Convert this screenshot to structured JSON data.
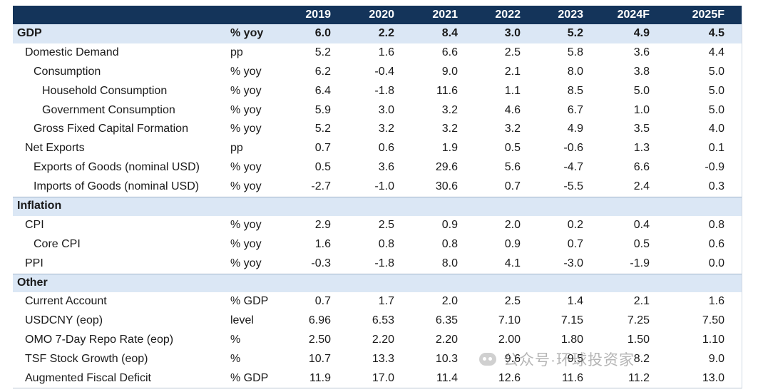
{
  "chart_data": {
    "type": "table",
    "columns": [
      "",
      "",
      "2019",
      "2020",
      "2021",
      "2022",
      "2023",
      "2024F",
      "2025F"
    ],
    "rows": [
      {
        "label": "GDP",
        "unit": "% yoy",
        "values": [
          "6.0",
          "2.2",
          "8.4",
          "3.0",
          "5.2",
          "4.9",
          "4.5"
        ],
        "kind": "section"
      },
      {
        "label": "Domestic Demand",
        "unit": "pp",
        "values": [
          "5.2",
          "1.6",
          "6.6",
          "2.5",
          "5.8",
          "3.6",
          "4.4"
        ],
        "indent": 1
      },
      {
        "label": "Consumption",
        "unit": "% yoy",
        "values": [
          "6.2",
          "-0.4",
          "9.0",
          "2.1",
          "8.0",
          "3.8",
          "5.0"
        ],
        "indent": 2
      },
      {
        "label": "Household Consumption",
        "unit": "% yoy",
        "values": [
          "6.4",
          "-1.8",
          "11.6",
          "1.1",
          "8.5",
          "5.0",
          "5.0"
        ],
        "indent": 3
      },
      {
        "label": "Government Consumption",
        "unit": "% yoy",
        "values": [
          "5.9",
          "3.0",
          "3.2",
          "4.6",
          "6.7",
          "1.0",
          "5.0"
        ],
        "indent": 3
      },
      {
        "label": "Gross Fixed Capital Formation",
        "unit": "% yoy",
        "values": [
          "5.2",
          "3.2",
          "3.2",
          "3.2",
          "4.9",
          "3.5",
          "4.0"
        ],
        "indent": 2
      },
      {
        "label": "Net Exports",
        "unit": "pp",
        "values": [
          "0.7",
          "0.6",
          "1.9",
          "0.5",
          "-0.6",
          "1.3",
          "0.1"
        ],
        "indent": 1
      },
      {
        "label": "Exports of Goods (nominal USD)",
        "unit": "% yoy",
        "values": [
          "0.5",
          "3.6",
          "29.6",
          "5.6",
          "-4.7",
          "6.6",
          "-0.9"
        ],
        "indent": 2
      },
      {
        "label": "Imports of Goods (nominal USD)",
        "unit": "% yoy",
        "values": [
          "-2.7",
          "-1.0",
          "30.6",
          "0.7",
          "-5.5",
          "2.4",
          "0.3"
        ],
        "indent": 2
      },
      {
        "label": "Inflation",
        "unit": "",
        "values": [
          "",
          "",
          "",
          "",
          "",
          "",
          ""
        ],
        "kind": "section"
      },
      {
        "label": "CPI",
        "unit": "% yoy",
        "values": [
          "2.9",
          "2.5",
          "0.9",
          "2.0",
          "0.2",
          "0.4",
          "0.8"
        ],
        "indent": 1
      },
      {
        "label": "Core CPI",
        "unit": "% yoy",
        "values": [
          "1.6",
          "0.8",
          "0.8",
          "0.9",
          "0.7",
          "0.5",
          "0.6"
        ],
        "indent": 2
      },
      {
        "label": "PPI",
        "unit": "% yoy",
        "values": [
          "-0.3",
          "-1.8",
          "8.0",
          "4.1",
          "-3.0",
          "-1.9",
          "0.0"
        ],
        "indent": 1
      },
      {
        "label": "Other",
        "unit": "",
        "values": [
          "",
          "",
          "",
          "",
          "",
          "",
          ""
        ],
        "kind": "section"
      },
      {
        "label": "Current Account",
        "unit": "% GDP",
        "values": [
          "0.7",
          "1.7",
          "2.0",
          "2.5",
          "1.4",
          "2.1",
          "1.6"
        ],
        "indent": 1
      },
      {
        "label": "USDCNY (eop)",
        "unit": "level",
        "values": [
          "6.96",
          "6.53",
          "6.35",
          "7.10",
          "7.15",
          "7.25",
          "7.50"
        ],
        "indent": 1
      },
      {
        "label": "OMO 7-Day Repo Rate (eop)",
        "unit": "%",
        "values": [
          "2.50",
          "2.20",
          "2.20",
          "2.00",
          "1.80",
          "1.50",
          "1.10"
        ],
        "indent": 1
      },
      {
        "label": "TSF Stock Growth (eop)",
        "unit": "%",
        "values": [
          "10.7",
          "13.3",
          "10.3",
          "9.6",
          "9.5",
          "8.2",
          "9.0"
        ],
        "indent": 1
      },
      {
        "label": "Augmented Fiscal Deficit",
        "unit": "% GDP",
        "values": [
          "11.9",
          "17.0",
          "11.4",
          "12.6",
          "11.6",
          "11.2",
          "13.0"
        ],
        "indent": 1
      }
    ]
  },
  "watermark": "公众号·环球投资家"
}
